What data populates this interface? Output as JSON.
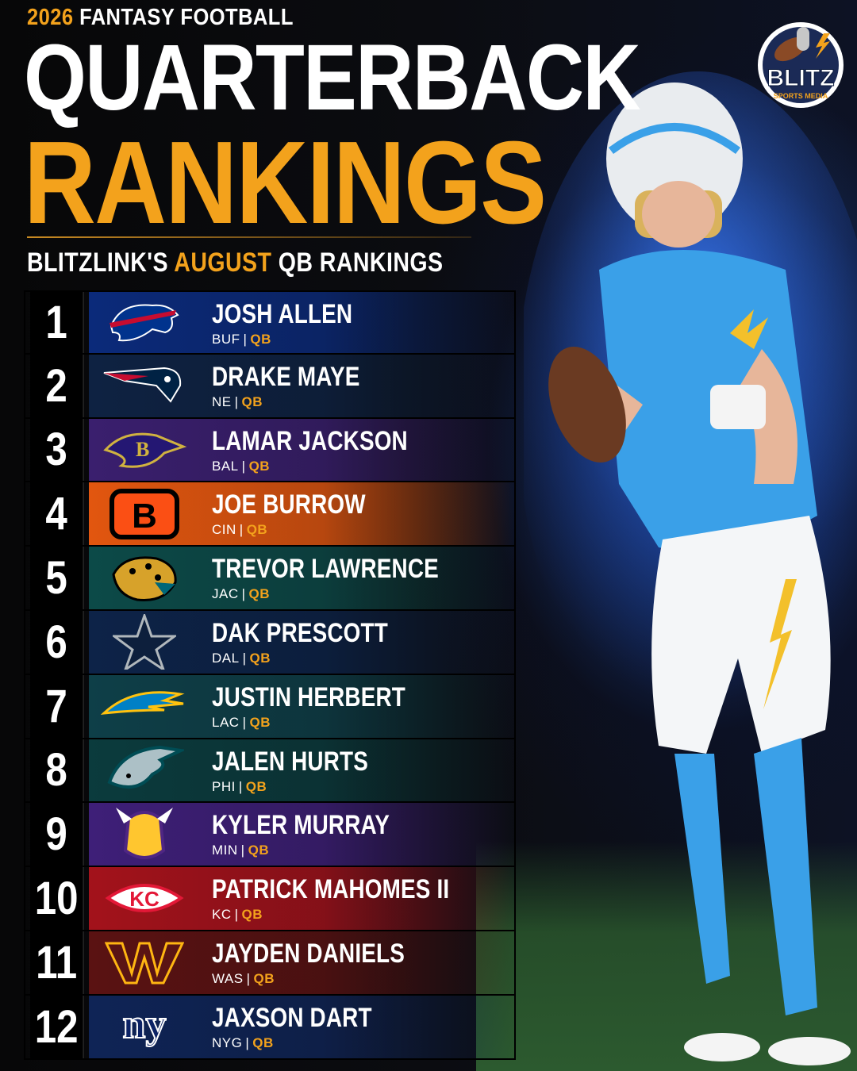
{
  "header": {
    "year": "2026",
    "kicker": "FANTASY FOOTBALL",
    "title_line1": "QUARTERBACK",
    "title_line2": "RANKINGS",
    "subtitle_pre": "BLITZLINK'S",
    "subtitle_highlight": "AUGUST",
    "subtitle_post": "QB RANKINGS"
  },
  "brand": {
    "logo_text": "BLITZ",
    "logo_sub": "SPORTS MEDIA"
  },
  "colors": {
    "accent": "#f3a21c",
    "background": "#0a0a0c"
  },
  "rankings": [
    {
      "rank": "1",
      "name": "JOSH ALLEN",
      "team": "BUF",
      "pos": "QB",
      "logo": "bills-logo",
      "color": "#0b2a7a"
    },
    {
      "rank": "2",
      "name": "DRAKE MAYE",
      "team": "NE",
      "pos": "QB",
      "logo": "patriots-logo",
      "color": "#0e2242"
    },
    {
      "rank": "3",
      "name": "LAMAR JACKSON",
      "team": "BAL",
      "pos": "QB",
      "logo": "ravens-logo",
      "color": "#3a1f6e"
    },
    {
      "rank": "4",
      "name": "JOE BURROW",
      "team": "CIN",
      "pos": "QB",
      "logo": "bengals-logo",
      "color": "#e2560f"
    },
    {
      "rank": "5",
      "name": "TREVOR LAWRENCE",
      "team": "JAC",
      "pos": "QB",
      "logo": "jaguars-logo",
      "color": "#0c4a48"
    },
    {
      "rank": "6",
      "name": "DAK PRESCOTT",
      "team": "DAL",
      "pos": "QB",
      "logo": "cowboys-logo",
      "color": "#0d2348"
    },
    {
      "rank": "7",
      "name": "JUSTIN HERBERT",
      "team": "LAC",
      "pos": "QB",
      "logo": "chargers-logo",
      "color": "#0e3f48"
    },
    {
      "rank": "8",
      "name": "JALEN HURTS",
      "team": "PHI",
      "pos": "QB",
      "logo": "eagles-logo",
      "color": "#0b3b3d"
    },
    {
      "rank": "9",
      "name": "KYLER MURRAY",
      "team": "MIN",
      "pos": "QB",
      "logo": "vikings-logo",
      "color": "#3e1f78"
    },
    {
      "rank": "10",
      "name": "PATRICK MAHOMES II",
      "team": "KC",
      "pos": "QB",
      "logo": "chiefs-logo",
      "color": "#a3121b"
    },
    {
      "rank": "11",
      "name": "JAYDEN DANIELS",
      "team": "WAS",
      "pos": "QB",
      "logo": "commanders-logo",
      "color": "#5a1212"
    },
    {
      "rank": "12",
      "name": "JAXSON DART",
      "team": "NYG",
      "pos": "QB",
      "logo": "giants-logo",
      "color": "#0f2456"
    }
  ]
}
